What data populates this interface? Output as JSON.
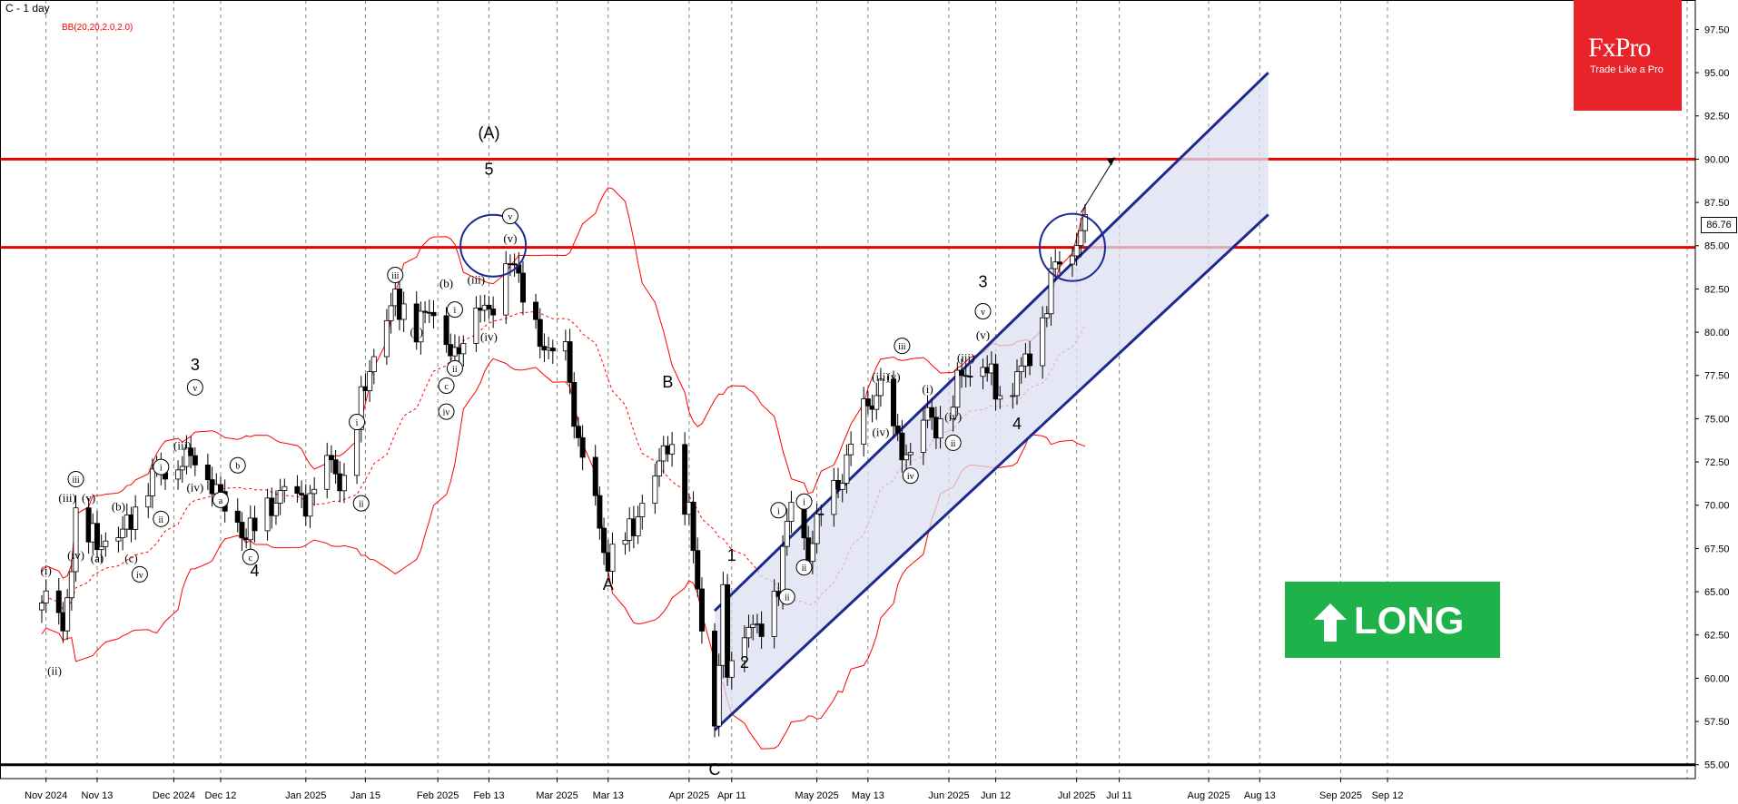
{
  "header": {
    "title": "C - 1 day",
    "indicator": "BB(20,20,2.0,2.0)"
  },
  "brand": {
    "name": "FxPro",
    "tagline": "Trade Like a Pro",
    "color": "#e8232a"
  },
  "signal": {
    "label": "LONG",
    "icon": "up-arrow-icon",
    "color": "#1fb14a"
  },
  "colors": {
    "bands": "#ff0000",
    "channel": "#1c2a8f",
    "levels": "#e60000",
    "support": "#000000"
  },
  "chart_data": {
    "type": "candlestick",
    "title": "C - 1 day",
    "ylim": [
      54.2,
      99.2
    ],
    "y_ticks": [
      55.0,
      57.5,
      60.0,
      62.5,
      65.0,
      67.5,
      70.0,
      72.5,
      75.0,
      77.5,
      80.0,
      82.5,
      85.0,
      87.5,
      90.0,
      92.5,
      95.0,
      97.5
    ],
    "x_ticks": [
      "Nov 2024",
      "Nov 13",
      "Dec 2024",
      "Dec 12",
      "Jan 2025",
      "Jan 15",
      "Feb 2025",
      "Feb 13",
      "Mar 2025",
      "Mar 13",
      "Apr 2025",
      "Apr 11",
      "May 2025",
      "May 13",
      "Jun 2025",
      "Jun 12",
      "Jul 2025",
      "Jul 11",
      "Aug 2025",
      "Aug 13",
      "Sep 2025",
      "Sep 12"
    ],
    "last_price": "86.76",
    "horizontal_levels": [
      90.0,
      84.9,
      55.0
    ],
    "price_path": [
      {
        "date": "Oct 30",
        "price": 63.2
      },
      {
        "date": "Nov 1",
        "price": 64.8
      },
      {
        "date": "Nov 5",
        "price": 62.6
      },
      {
        "date": "Nov 8",
        "price": 69.0
      },
      {
        "date": "Nov 13",
        "price": 67.8
      },
      {
        "date": "Nov 19",
        "price": 68.4
      },
      {
        "date": "Nov 26",
        "price": 71.8
      },
      {
        "date": "Dec 6",
        "price": 72.9
      },
      {
        "date": "Dec 12",
        "price": 70.4
      },
      {
        "date": "Dec 18",
        "price": 68.2
      },
      {
        "date": "Dec 26",
        "price": 70.6
      },
      {
        "date": "Jan 2",
        "price": 70.2
      },
      {
        "date": "Jan 7",
        "price": 72.6
      },
      {
        "date": "Jan 10",
        "price": 70.8
      },
      {
        "date": "Jan 15",
        "price": 77.2
      },
      {
        "date": "Jan 22",
        "price": 82.0
      },
      {
        "date": "Jan 27",
        "price": 80.3
      },
      {
        "date": "Jan 31",
        "price": 81.6
      },
      {
        "date": "Feb 5",
        "price": 78.3
      },
      {
        "date": "Feb 10",
        "price": 81.9
      },
      {
        "date": "Feb 13",
        "price": 80.9
      },
      {
        "date": "Feb 18",
        "price": 84.6
      },
      {
        "date": "Feb 21",
        "price": 82.0
      },
      {
        "date": "Feb 27",
        "price": 78.6
      },
      {
        "date": "Mar 3",
        "price": 79.0
      },
      {
        "date": "Mar 6",
        "price": 73.4
      },
      {
        "date": "Mar 10",
        "price": 69.8
      },
      {
        "date": "Mar 13",
        "price": 66.5
      },
      {
        "date": "Mar 18",
        "price": 68.4
      },
      {
        "date": "Mar 24",
        "price": 71.5
      },
      {
        "date": "Mar 27",
        "price": 73.9
      },
      {
        "date": "Apr 1",
        "price": 69.4
      },
      {
        "date": "Apr 4",
        "price": 63.3
      },
      {
        "date": "Apr 7",
        "price": 57.5
      },
      {
        "date": "Apr 9",
        "price": 64.5
      },
      {
        "date": "Apr 10",
        "price": 60.6
      },
      {
        "date": "Apr 14",
        "price": 63.1
      },
      {
        "date": "Apr 17",
        "price": 62.7
      },
      {
        "date": "Apr 22",
        "price": 65.5
      },
      {
        "date": "Apr 25",
        "price": 70.4
      },
      {
        "date": "Apr 29",
        "price": 67.2
      },
      {
        "date": "May 2",
        "price": 69.6
      },
      {
        "date": "May 7",
        "price": 71.7
      },
      {
        "date": "May 12",
        "price": 75.5
      },
      {
        "date": "May 16",
        "price": 76.6
      },
      {
        "date": "May 20",
        "price": 73.6
      },
      {
        "date": "May 23",
        "price": 72.7
      },
      {
        "date": "May 27",
        "price": 75.3
      },
      {
        "date": "May 30",
        "price": 74.4
      },
      {
        "date": "Jun 4",
        "price": 77.6
      },
      {
        "date": "Jun 9",
        "price": 78.2
      },
      {
        "date": "Jun 13",
        "price": 76.4
      },
      {
        "date": "Jun 18",
        "price": 77.8
      },
      {
        "date": "Jun 23",
        "price": 80.8
      },
      {
        "date": "Jun 26",
        "price": 84.0
      },
      {
        "date": "Jun 30",
        "price": 84.6
      },
      {
        "date": "Jul 3",
        "price": 86.8
      }
    ],
    "wave_labels": {
      "plain": [
        {
          "text": "(A)",
          "date": "Feb 13",
          "price": 91.2
        },
        {
          "text": "5",
          "date": "Feb 13",
          "price": 89.1
        },
        {
          "text": "3",
          "date": "Dec 6",
          "price": 77.8
        },
        {
          "text": "4",
          "date": "Dec 20",
          "price": 65.9
        },
        {
          "text": "B",
          "date": "Mar 27",
          "price": 76.8
        },
        {
          "text": "A",
          "date": "Mar 13",
          "price": 65.1
        },
        {
          "text": "C",
          "date": "Apr 7",
          "price": 54.4
        },
        {
          "text": "1",
          "date": "Apr 11",
          "price": 66.8
        },
        {
          "text": "2",
          "date": "Apr 14",
          "price": 60.6
        },
        {
          "text": "3",
          "date": "Jun 9",
          "price": 82.6
        },
        {
          "text": "4",
          "date": "Jun 17",
          "price": 74.4
        }
      ],
      "parenthesized": [
        {
          "text": "(a)",
          "date": "Nov 13",
          "price": 66.7
        },
        {
          "text": "(b)",
          "date": "Nov 18",
          "price": 69.7
        },
        {
          "text": "(c)",
          "date": "Nov 21",
          "price": 66.7
        },
        {
          "text": "(iii)",
          "date": "Nov 6",
          "price": 70.2
        },
        {
          "text": "(v)",
          "date": "Nov 11",
          "price": 70.2
        },
        {
          "text": "(iv)",
          "date": "Nov 8",
          "price": 66.9
        },
        {
          "text": "(i)",
          "date": "Nov 1",
          "price": 66.0
        },
        {
          "text": "(ii)",
          "date": "Nov 3",
          "price": 60.2
        },
        {
          "text": "(iii)",
          "date": "Dec 3",
          "price": 73.2
        },
        {
          "text": "(iv)",
          "date": "Dec 6",
          "price": 70.8
        },
        {
          "text": "(a)",
          "date": "Jan 27",
          "price": 79.8
        },
        {
          "text": "(b)",
          "date": "Feb 3",
          "price": 82.6
        },
        {
          "text": "(iii)",
          "date": "Feb 10",
          "price": 82.8
        },
        {
          "text": "(iv)",
          "date": "Feb 13",
          "price": 79.5
        },
        {
          "text": "(v)",
          "date": "Feb 18",
          "price": 85.2
        },
        {
          "text": "(iii)",
          "date": "May 16",
          "price": 77.2
        },
        {
          "text": "(v)",
          "date": "May 19",
          "price": 77.2
        },
        {
          "text": "(iv)",
          "date": "May 16",
          "price": 74.0
        },
        {
          "text": "(i)",
          "date": "May 27",
          "price": 76.5
        },
        {
          "text": "(iii)",
          "date": "Jun 5",
          "price": 78.3
        },
        {
          "text": "(iv)",
          "date": "Jun 2",
          "price": 74.9
        },
        {
          "text": "(v)",
          "date": "Jun 9",
          "price": 79.6
        }
      ],
      "circled": [
        {
          "text": "i",
          "date": "Nov 28",
          "price": 72.0
        },
        {
          "text": "ii",
          "date": "Nov 28",
          "price": 69.0
        },
        {
          "text": "iii",
          "date": "Nov 8",
          "price": 71.3
        },
        {
          "text": "iv",
          "date": "Nov 23",
          "price": 65.8
        },
        {
          "text": "v",
          "date": "Dec 6",
          "price": 76.6
        },
        {
          "text": "a",
          "date": "Dec 12",
          "price": 70.1
        },
        {
          "text": "b",
          "date": "Dec 16",
          "price": 72.1
        },
        {
          "text": "c",
          "date": "Dec 19",
          "price": 66.8
        },
        {
          "text": "i",
          "date": "Jan 13",
          "price": 74.6
        },
        {
          "text": "ii",
          "date": "Jan 14",
          "price": 69.9
        },
        {
          "text": "iii",
          "date": "Jan 22",
          "price": 83.1
        },
        {
          "text": "i",
          "date": "Feb 5",
          "price": 81.1
        },
        {
          "text": "ii",
          "date": "Feb 5",
          "price": 77.7
        },
        {
          "text": "c",
          "date": "Feb 3",
          "price": 76.7
        },
        {
          "text": "iv",
          "date": "Feb 3",
          "price": 75.2
        },
        {
          "text": "v",
          "date": "Feb 18",
          "price": 86.5
        },
        {
          "text": "i",
          "date": "Apr 22",
          "price": 69.5
        },
        {
          "text": "ii",
          "date": "Apr 24",
          "price": 64.5
        },
        {
          "text": "i",
          "date": "Apr 28",
          "price": 70.0
        },
        {
          "text": "ii",
          "date": "Apr 28",
          "price": 66.2
        },
        {
          "text": "iii",
          "date": "May 21",
          "price": 79.0
        },
        {
          "text": "iv",
          "date": "May 23",
          "price": 71.5
        },
        {
          "text": "ii",
          "date": "Jun 2",
          "price": 73.4
        },
        {
          "text": "v",
          "date": "Jun 9",
          "price": 81.0
        }
      ]
    }
  }
}
